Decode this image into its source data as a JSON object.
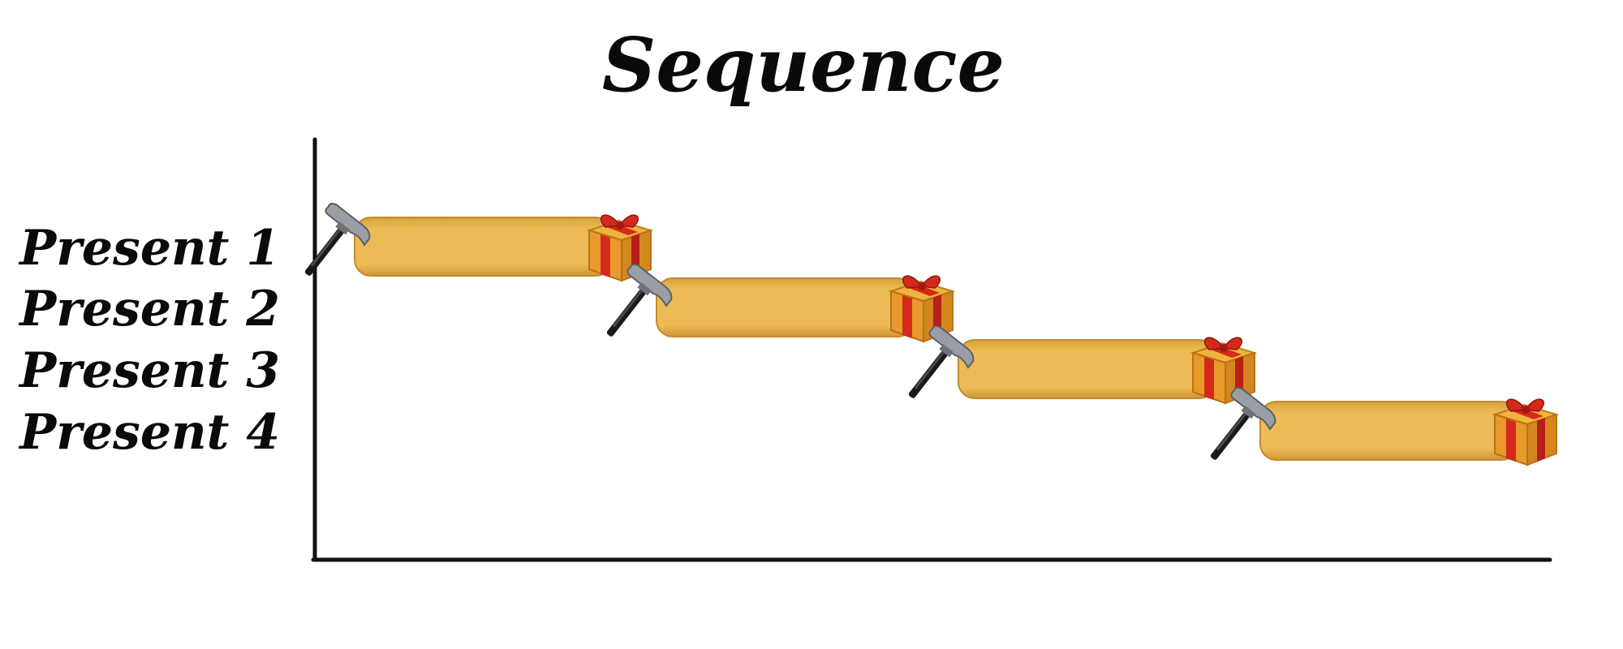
{
  "chart_data": {
    "type": "bar",
    "subtype": "gantt",
    "title": "Sequence",
    "xlabel": "",
    "ylabel": "",
    "grid": false,
    "legend": "none",
    "categories": [
      "Present 1",
      "Present 2",
      "Present 3",
      "Present 4"
    ],
    "tasks": [
      {
        "category": "Present 1",
        "start": 0,
        "end": 1
      },
      {
        "category": "Present 2",
        "start": 1,
        "end": 2
      },
      {
        "category": "Present 3",
        "start": 2,
        "end": 3
      },
      {
        "category": "Present 4",
        "start": 3,
        "end": 4
      }
    ],
    "xlim": [
      0,
      4
    ],
    "start_marker_icon": "hammer-icon",
    "end_marker_icon": "gift-icon",
    "colors": {
      "bar": "#e8b44a",
      "axis": "#111111",
      "gift_box": "#e89a2a",
      "gift_ribbon": "#d42a1e"
    }
  }
}
